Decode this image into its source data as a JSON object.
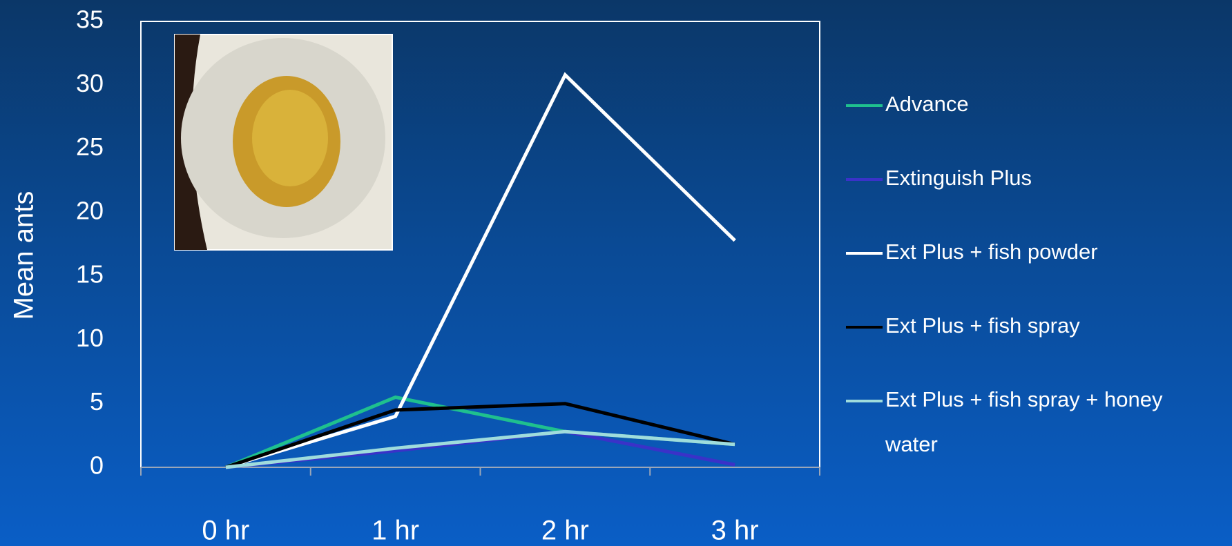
{
  "chart_data": {
    "type": "line",
    "y_label": "Mean ants",
    "categories": [
      "0 hr",
      "1 hr",
      "2 hr",
      "3 hr"
    ],
    "series": [
      {
        "name": "Advance",
        "color": "#1fc08e",
        "values": [
          0,
          5.5,
          2.8,
          1.8
        ]
      },
      {
        "name": "Extinguish Plus",
        "color": "#3a32c8",
        "values": [
          0,
          1.3,
          2.8,
          0.2
        ]
      },
      {
        "name": "Ext Plus + fish powder",
        "color": "#ffffff",
        "values": [
          0,
          4.0,
          30.8,
          17.8
        ]
      },
      {
        "name": "Ext Plus + fish spray",
        "color": "#000000",
        "values": [
          0,
          4.5,
          5.0,
          1.8
        ]
      },
      {
        "name": "Ext Plus + fish spray + honey water",
        "color": "#9fdcdc",
        "values": [
          0,
          1.5,
          2.8,
          1.8
        ]
      }
    ],
    "ylim": [
      0,
      35
    ],
    "yticks": [
      0,
      5,
      10,
      15,
      20,
      25,
      30,
      35
    ]
  }
}
